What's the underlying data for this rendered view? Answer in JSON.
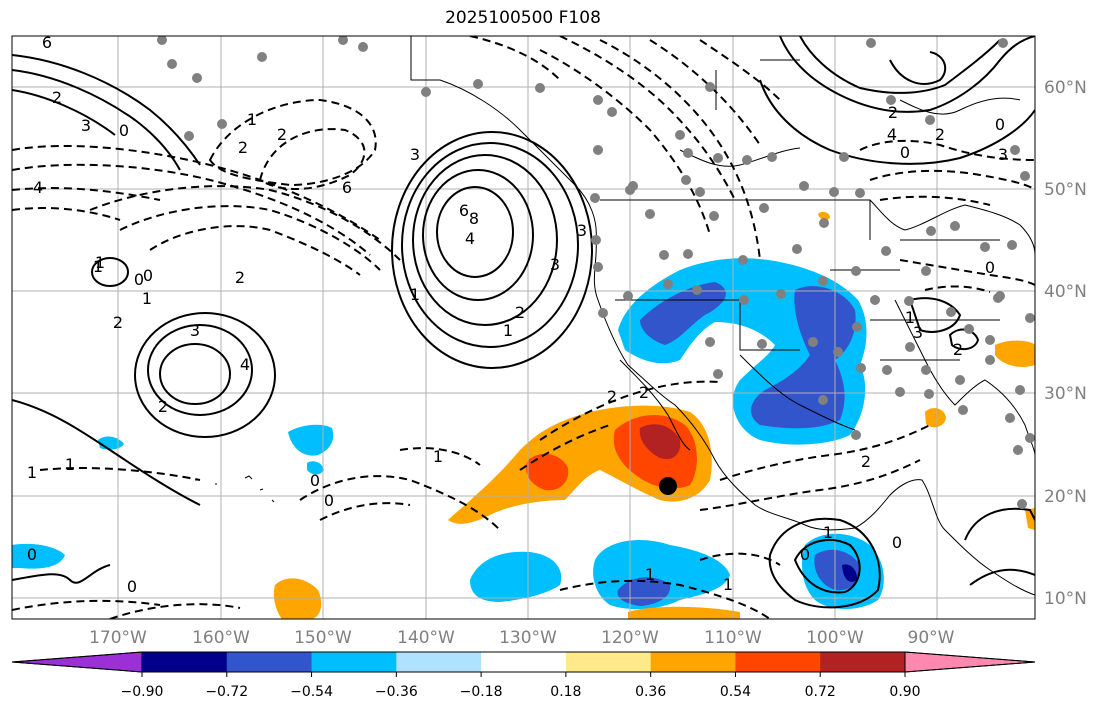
{
  "title": "2025100500 F108",
  "lat_labels": [
    "60°N",
    "50°N",
    "40°N",
    "30°N",
    "20°N",
    "10°N"
  ],
  "lon_labels": [
    "170°W",
    "160°W",
    "150°W",
    "140°W",
    "130°W",
    "120°W",
    "110°W",
    "100°W",
    "90°W"
  ],
  "colorbar": {
    "ticks": [
      "−0.90",
      "−0.72",
      "−0.54",
      "−0.36",
      "−0.18",
      "0.18",
      "0.36",
      "0.54",
      "0.72",
      "0.90"
    ],
    "colors": [
      "#9b30d6",
      "#00008b",
      "#3355cc",
      "#00bfff",
      "#b0e2ff",
      "#ffffff",
      "#ffe98a",
      "#ffa500",
      "#ff4500",
      "#b22222",
      "#ff88b0"
    ]
  },
  "contour_labels": [
    "6",
    "3",
    "2",
    "0",
    "4",
    "6",
    "2",
    "3",
    "2",
    "1",
    "0",
    "1",
    "4",
    "2",
    "3",
    "6",
    "8",
    "4",
    "3",
    "2",
    "1",
    "0",
    "2",
    "2",
    "1",
    "0",
    "1",
    "1",
    "0",
    "1",
    "2",
    "0",
    "1",
    "2",
    "3",
    "4",
    "2",
    "0",
    "2",
    "3",
    "0",
    "1",
    "2",
    "3",
    "1",
    "0",
    "1",
    "2",
    "1",
    "0",
    "0",
    "0",
    "1"
  ],
  "marker": "forecast-location-dot"
}
